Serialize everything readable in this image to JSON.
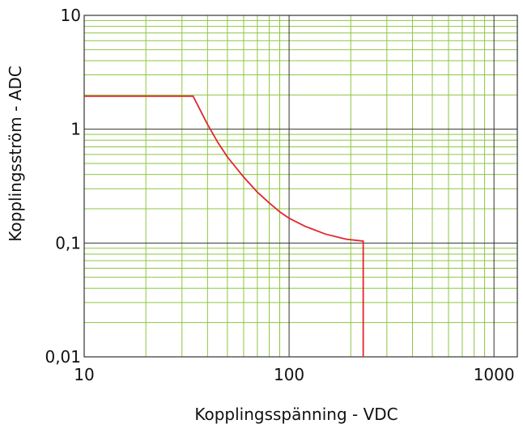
{
  "chart_data": {
    "type": "line",
    "title": "",
    "xlabel": "Kopplingsspänning - VDC",
    "ylabel": "Kopplingsström - ADC",
    "x_scale": "log",
    "y_scale": "log",
    "xlim": [
      10,
      1300
    ],
    "ylim": [
      0.01,
      10
    ],
    "grid": true,
    "x_ticks": [
      {
        "value": 10,
        "label": "10"
      },
      {
        "value": 100,
        "label": "100"
      },
      {
        "value": 1000,
        "label": "1000"
      }
    ],
    "y_ticks": [
      {
        "value": 10,
        "label": "10"
      },
      {
        "value": 1,
        "label": "1"
      },
      {
        "value": 0.1,
        "label": "0,1"
      },
      {
        "value": 0.01,
        "label": "0,01"
      }
    ],
    "series": [
      {
        "name": "",
        "color": "#e1262d",
        "points": [
          [
            10,
            1.95
          ],
          [
            34,
            1.95
          ],
          [
            40,
            1.1
          ],
          [
            45,
            0.76
          ],
          [
            50,
            0.57
          ],
          [
            60,
            0.38
          ],
          [
            70,
            0.28
          ],
          [
            80,
            0.225
          ],
          [
            90,
            0.188
          ],
          [
            100,
            0.165
          ],
          [
            120,
            0.14
          ],
          [
            150,
            0.12
          ],
          [
            190,
            0.108
          ],
          [
            230,
            0.104
          ],
          [
            230,
            0.01
          ]
        ]
      }
    ],
    "colors": {
      "minor_grid": "#8dc641",
      "major_grid": "#333333",
      "line": "#e1262d"
    }
  }
}
